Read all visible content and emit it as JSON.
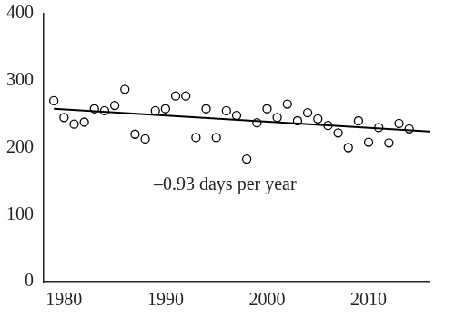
{
  "chart_data": {
    "type": "scatter",
    "annotation": "–0.93 days per year",
    "xlim": [
      1978,
      2016
    ],
    "xticks": [
      1980,
      1990,
      2000,
      2010
    ],
    "ylim": [
      0,
      400
    ],
    "yticks": [
      0,
      100,
      200,
      300,
      400
    ],
    "grid": false,
    "series": [
      {
        "type": "scatter",
        "marker": "circle",
        "color": "#000000",
        "x": [
          1979,
          1980,
          1981,
          1982,
          1983,
          1984,
          1985,
          1986,
          1987,
          1988,
          1989,
          1990,
          1991,
          1992,
          1993,
          1994,
          1995,
          1996,
          1997,
          1998,
          1999,
          2000,
          2001,
          2002,
          2003,
          2004,
          2005,
          2006,
          2007,
          2008,
          2009,
          2010,
          2011,
          2012,
          2013,
          2014
        ],
        "values": [
          270,
          245,
          235,
          238,
          258,
          255,
          263,
          287,
          220,
          213,
          255,
          258,
          277,
          277,
          215,
          258,
          215,
          255,
          248,
          183,
          237,
          258,
          245,
          265,
          240,
          252,
          243,
          233,
          222,
          200,
          240,
          208,
          230,
          207,
          236,
          228
        ]
      },
      {
        "type": "line",
        "color": "#000000",
        "x": [
          1979,
          2016
        ],
        "values": [
          258,
          224
        ]
      }
    ]
  }
}
